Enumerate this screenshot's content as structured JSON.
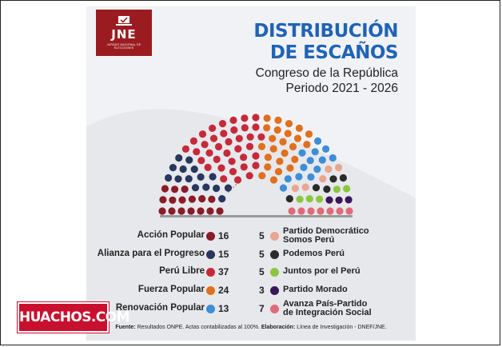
{
  "logo": {
    "text": "JNE",
    "sub": "JURADO NACIONAL DE ELECCIONES"
  },
  "title": {
    "line1": "DISTRIBUCIÓN",
    "line2": "DE ESCAÑOS"
  },
  "subtitle": {
    "line1": "Congreso de la República",
    "line2": "Periodo 2021 - 2026"
  },
  "chart_data": {
    "type": "parliament",
    "total_seats": 130,
    "parties": [
      {
        "name": "Acción Popular",
        "seats": 16,
        "color": "#8a1c28"
      },
      {
        "name": "Alianza para el Progreso",
        "seats": 15,
        "color": "#27375e"
      },
      {
        "name": "Perú Libre",
        "seats": 37,
        "color": "#c62a3a"
      },
      {
        "name": "Fuerza Popular",
        "seats": 24,
        "color": "#e0701e"
      },
      {
        "name": "Renovación Popular",
        "seats": 13,
        "color": "#3d8ed6"
      },
      {
        "name": "Partido Democrático Somos Perú",
        "seats": 5,
        "color": "#e8a590"
      },
      {
        "name": "Podemos Perú",
        "seats": 5,
        "color": "#2b2b2b"
      },
      {
        "name": "Juntos por el Perú",
        "seats": 5,
        "color": "#8cc63f"
      },
      {
        "name": "Partido Morado",
        "seats": 3,
        "color": "#3a1758"
      },
      {
        "name": "Avanza País-Partido de Integración Social",
        "seats": 7,
        "color": "#e06b76"
      }
    ]
  },
  "legend": {
    "left": [
      {
        "label": "Acción Popular",
        "seats": "16",
        "color": "#8a1c28"
      },
      {
        "label": "Alianza para el Progreso",
        "seats": "15",
        "color": "#27375e"
      },
      {
        "label": "Perú Libre",
        "seats": "37",
        "color": "#c62a3a"
      },
      {
        "label": "Fuerza Popular",
        "seats": "24",
        "color": "#e0701e"
      },
      {
        "label": "Renovación Popular",
        "seats": "13",
        "color": "#3d8ed6"
      }
    ],
    "right": [
      {
        "label1": "Partido Democrático",
        "label2": "Somos Perú",
        "seats": "5",
        "color": "#e8a590"
      },
      {
        "label1": "Podemos Perú",
        "label2": "",
        "seats": "5",
        "color": "#2b2b2b"
      },
      {
        "label1": "Juntos por el Perú",
        "label2": "",
        "seats": "5",
        "color": "#8cc63f"
      },
      {
        "label1": "Partido Morado",
        "label2": "",
        "seats": "3",
        "color": "#3a1758"
      },
      {
        "label1": "Avanza País-Partido",
        "label2": "de Integración Social",
        "seats": "7",
        "color": "#e06b76"
      }
    ]
  },
  "source": {
    "label1": "Fuente:",
    "text1": " Resultados ONPE. Actas contabilizadas al 100%. ",
    "label2": "Elaboración:",
    "text2": " Línea de Investigación - DNEF/JNE."
  },
  "badge": {
    "text": "HUACHOS.COM"
  }
}
